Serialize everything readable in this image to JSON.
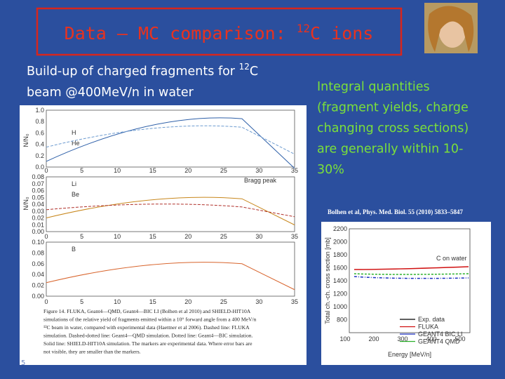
{
  "header": {
    "title": "Data – MC comparison: ",
    "title_sup": "12",
    "title_end": "C ions"
  },
  "left": {
    "caption_lines": [
      {
        "text": "Build-up of charged fragments for ",
        "sup": "12",
        "end": "C"
      },
      {
        "text": "beam @400MeV/n in water"
      }
    ],
    "figure": {
      "y_axis_label_1": "N/N₀",
      "y_axis_label_2": "N/N₀",
      "panels": [
        {
          "yticks": [
            "1.0",
            "0.8",
            "0.6",
            "0.4",
            "0.2",
            "0.0"
          ],
          "xticks": [
            "0",
            "5",
            "10",
            "15",
            "20",
            "25",
            "30",
            "35"
          ],
          "labels": [
            "H",
            "He"
          ]
        },
        {
          "yticks": [
            "0.08",
            "0.07",
            "0.06",
            "0.05",
            "0.04",
            "0.03",
            "0.02",
            "0.01",
            "0.00"
          ],
          "xticks": [
            "0",
            "5",
            "10",
            "15",
            "20",
            "25",
            "30",
            "35"
          ],
          "labels": [
            "Li",
            "Be"
          ],
          "annotation": "Bragg peak"
        },
        {
          "yticks": [
            "0.10",
            "0.08",
            "0.06",
            "0.04",
            "0.02",
            "0.00"
          ],
          "xticks": [
            "0",
            "5",
            "10",
            "15",
            "20",
            "25",
            "30",
            "35"
          ],
          "labels": [
            "B"
          ]
        }
      ],
      "caption": [
        "Figure 14. FLUKA, Geant4—QMD, Geant4—BIC LI (Bolhen et al 2010) and SHIELD-HIT10A",
        "simulations of the relative yield of fragments emitted within a 10° forward angle from a 400 MeV/n",
        "¹²C beam in water, compared with experimental data (Haettner et al 2006). Dashed line: FLUKA",
        "simulation. Dashed-dotted line: Geant4—QMD simulation. Dotted line: Geant4—BIC simulation.",
        "Solid line: SHIELD-HIT10A simulation. The markers are experimental data. Where error bars are",
        "not visible, they are smaller than the markers."
      ]
    }
  },
  "right": {
    "text_lines": [
      "Integral quantities",
      "(fragment yields, charge",
      "changing cross sections)",
      "are generally within 10-",
      "30%"
    ],
    "citation": "Bolhen et al, Phys. Med. Biol. 55 (2010) 5833–5847",
    "chart": {
      "y_label": "Total ch.-ch. cross section [mb]",
      "x_label": "Energy [MeV/n]",
      "yticks": [
        "2200",
        "2000",
        "1800",
        "1600",
        "1400",
        "1200",
        "1000",
        "800"
      ],
      "xticks": [
        "100",
        "200",
        "300",
        "400",
        "500"
      ],
      "title": "C on water",
      "legend": [
        "Exp. data",
        "FLUKA",
        "GEANT4 BIC LI",
        "GEANT4 QMD"
      ]
    }
  },
  "footer": {
    "page": "5"
  }
}
